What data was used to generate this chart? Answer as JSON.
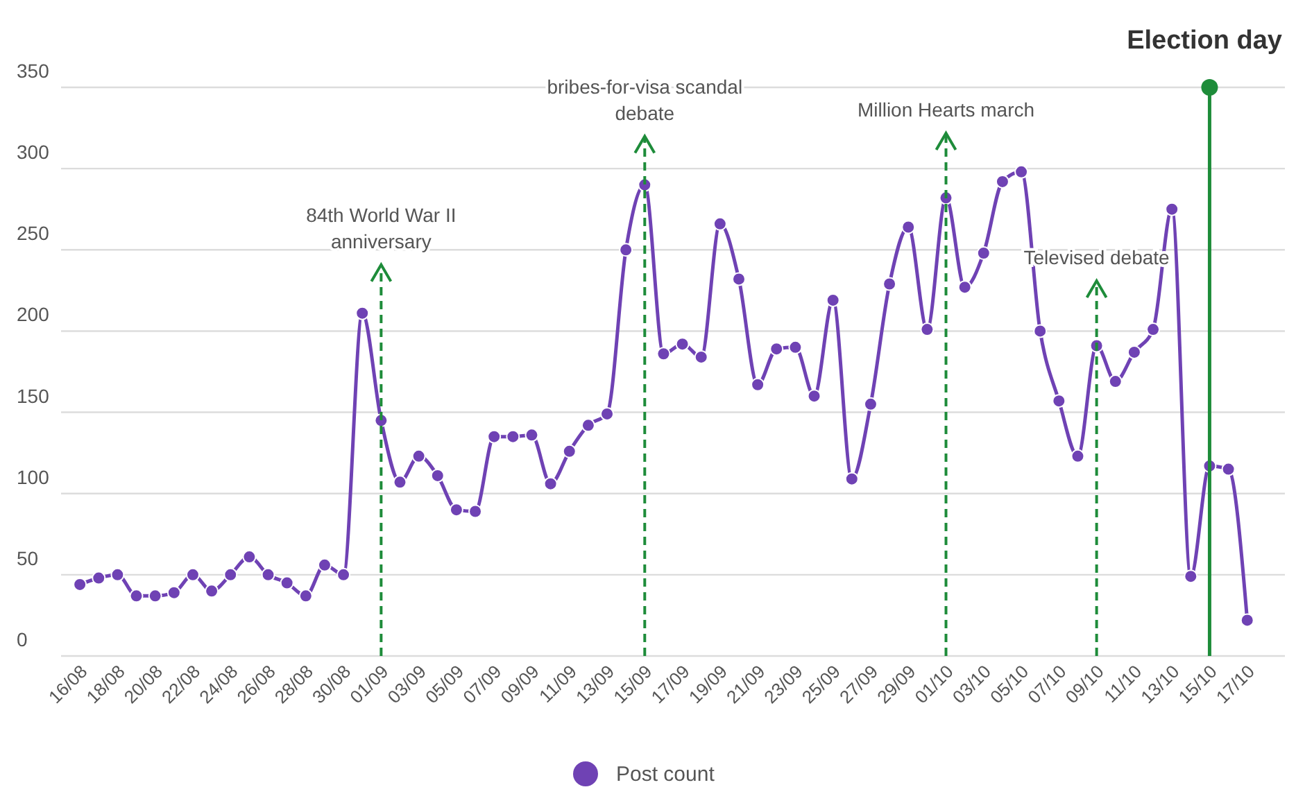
{
  "chart_data": {
    "type": "line",
    "x": [
      "--08-16",
      "--08-17",
      "--08-18",
      "--08-19",
      "--08-20",
      "--08-21",
      "--08-22",
      "--08-23",
      "--08-24",
      "--08-25",
      "--08-26",
      "--08-27",
      "--08-28",
      "--08-29",
      "--08-30",
      "--08-31",
      "--09-01",
      "--09-02",
      "--09-03",
      "--09-04",
      "--09-05",
      "--09-06",
      "--09-07",
      "--09-08",
      "--09-09",
      "--09-10",
      "--09-11",
      "--09-12",
      "--09-13",
      "--09-14",
      "--09-15",
      "--09-16",
      "--09-17",
      "--09-18",
      "--09-19",
      "--09-20",
      "--09-21",
      "--09-22",
      "--09-23",
      "--09-24",
      "--09-25",
      "--09-26",
      "--09-27",
      "--09-28",
      "--09-29",
      "--09-30",
      "--10-01",
      "--10-02",
      "--10-03",
      "--10-04",
      "--10-05",
      "--10-06",
      "--10-07",
      "--10-08",
      "--10-09",
      "--10-10",
      "--10-11",
      "--10-12",
      "--10-13",
      "--10-14",
      "--10-15",
      "--10-16",
      "--10-17"
    ],
    "series": [
      {
        "name": "Post count",
        "color": "#6f42b4",
        "values": [
          44,
          48,
          50,
          37,
          37,
          39,
          50,
          40,
          50,
          61,
          50,
          45,
          37,
          56,
          50,
          211,
          145,
          107,
          123,
          111,
          90,
          89,
          135,
          135,
          136,
          106,
          126,
          142,
          149,
          250,
          290,
          186,
          192,
          184,
          266,
          232,
          167,
          189,
          190,
          160,
          219,
          109,
          155,
          229,
          264,
          201,
          282,
          227,
          248,
          292,
          298,
          200,
          157,
          123,
          191,
          169,
          187,
          201,
          275,
          49,
          117,
          115,
          22
        ]
      }
    ],
    "xlim": [
      "--08-15",
      "--10-19"
    ],
    "xticks": [
      {
        "value": "--08-16",
        "label": "16/08"
      },
      {
        "value": "--08-18",
        "label": "18/08"
      },
      {
        "value": "--08-20",
        "label": "20/08"
      },
      {
        "value": "--08-22",
        "label": "22/08"
      },
      {
        "value": "--08-24",
        "label": "24/08"
      },
      {
        "value": "--08-26",
        "label": "26/08"
      },
      {
        "value": "--08-28",
        "label": "28/08"
      },
      {
        "value": "--08-30",
        "label": "30/08"
      },
      {
        "value": "--09-01",
        "label": "01/09"
      },
      {
        "value": "--09-03",
        "label": "03/09"
      },
      {
        "value": "--09-05",
        "label": "05/09"
      },
      {
        "value": "--09-07",
        "label": "07/09"
      },
      {
        "value": "--09-09",
        "label": "09/09"
      },
      {
        "value": "--09-11",
        "label": "11/09"
      },
      {
        "value": "--09-13",
        "label": "13/09"
      },
      {
        "value": "--09-15",
        "label": "15/09"
      },
      {
        "value": "--09-17",
        "label": "17/09"
      },
      {
        "value": "--09-19",
        "label": "19/09"
      },
      {
        "value": "--09-21",
        "label": "21/09"
      },
      {
        "value": "--09-23",
        "label": "23/09"
      },
      {
        "value": "--09-25",
        "label": "25/09"
      },
      {
        "value": "--09-27",
        "label": "27/09"
      },
      {
        "value": "--09-29",
        "label": "29/09"
      },
      {
        "value": "--10-01",
        "label": "01/10"
      },
      {
        "value": "--10-03",
        "label": "03/10"
      },
      {
        "value": "--10-05",
        "label": "05/10"
      },
      {
        "value": "--10-07",
        "label": "07/10"
      },
      {
        "value": "--10-09",
        "label": "09/10"
      },
      {
        "value": "--10-11",
        "label": "11/10"
      },
      {
        "value": "--10-13",
        "label": "13/10"
      },
      {
        "value": "--10-15",
        "label": "15/10"
      },
      {
        "value": "--10-17",
        "label": "17/10"
      }
    ],
    "ylim": [
      0,
      350
    ],
    "yticks": [
      0,
      50,
      100,
      150,
      200,
      250,
      300,
      350
    ],
    "grid": "y",
    "marker": "circle",
    "legend": "bottom",
    "ref_lines": [
      {
        "axis": "x",
        "value": "--09-01",
        "label": "84th World War II anniversary",
        "color": "#1e8c3a",
        "line_style": "dashed"
      },
      {
        "axis": "x",
        "value": "--09-15",
        "label": "bribes-for-visa scandal debate",
        "color": "#1e8c3a",
        "line_style": "dashed"
      },
      {
        "axis": "x",
        "value": "--10-01",
        "label": "Million Hearts march",
        "color": "#1e8c3a",
        "line_style": "dashed"
      },
      {
        "axis": "x",
        "value": "--10-09",
        "label": "Televised debate",
        "color": "#1e8c3a",
        "line_style": "dashed"
      },
      {
        "axis": "x",
        "value": "--10-15",
        "label": "Election day",
        "color": "#1e8c3a",
        "line_style": "solid"
      }
    ]
  }
}
